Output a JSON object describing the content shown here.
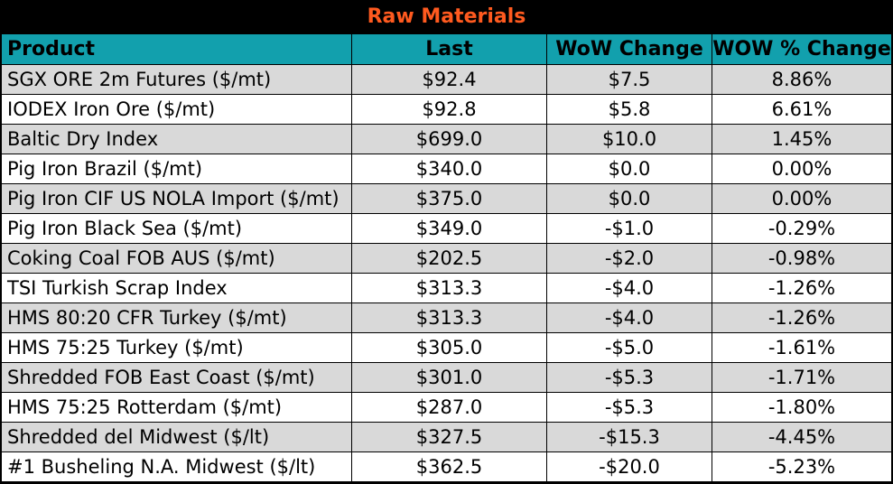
{
  "title": "Raw Materials",
  "colors": {
    "title": "#ff5a1f",
    "header_bg": "#12a0ad",
    "row_shaded": "#d9d9d9",
    "row_plain": "#ffffff",
    "background": "#000000"
  },
  "headers": [
    "Product",
    "Last",
    "WoW Change",
    "WOW % Change"
  ],
  "rows": [
    [
      "SGX ORE 2m Futures ($/mt)",
      "$92.4",
      "$7.5",
      "8.86%"
    ],
    [
      "IODEX  Iron Ore ($/mt)",
      "$92.8",
      "$5.8",
      "6.61%"
    ],
    [
      "Baltic Dry Index",
      "$699.0",
      "$10.0",
      "1.45%"
    ],
    [
      "Pig Iron Brazil ($/mt)",
      "$340.0",
      "$0.0",
      "0.00%"
    ],
    [
      "Pig Iron CIF US NOLA Import ($/mt)",
      "$375.0",
      "$0.0",
      "0.00%"
    ],
    [
      "Pig Iron Black Sea ($/mt)",
      "$349.0",
      "-$1.0",
      "-0.29%"
    ],
    [
      "Coking Coal FOB AUS ($/mt)",
      "$202.5",
      "-$2.0",
      "-0.98%"
    ],
    [
      "TSI Turkish Scrap Index",
      "$313.3",
      "-$4.0",
      "-1.26%"
    ],
    [
      "HMS 80:20 CFR Turkey ($/mt)",
      "$313.3",
      "-$4.0",
      "-1.26%"
    ],
    [
      "HMS 75:25 Turkey ($/mt)",
      "$305.0",
      "-$5.0",
      "-1.61%"
    ],
    [
      "Shredded FOB East Coast ($/mt)",
      "$301.0",
      "-$5.3",
      "-1.71%"
    ],
    [
      "HMS 75:25 Rotterdam ($/mt)",
      "$287.0",
      "-$5.3",
      "-1.80%"
    ],
    [
      "Shredded del  Midwest ($/lt)",
      "$327.5",
      "-$15.3",
      "-4.45%"
    ],
    [
      "#1 Busheling N.A. Midwest ($/lt)",
      "$362.5",
      "-$20.0",
      "-5.23%"
    ]
  ]
}
